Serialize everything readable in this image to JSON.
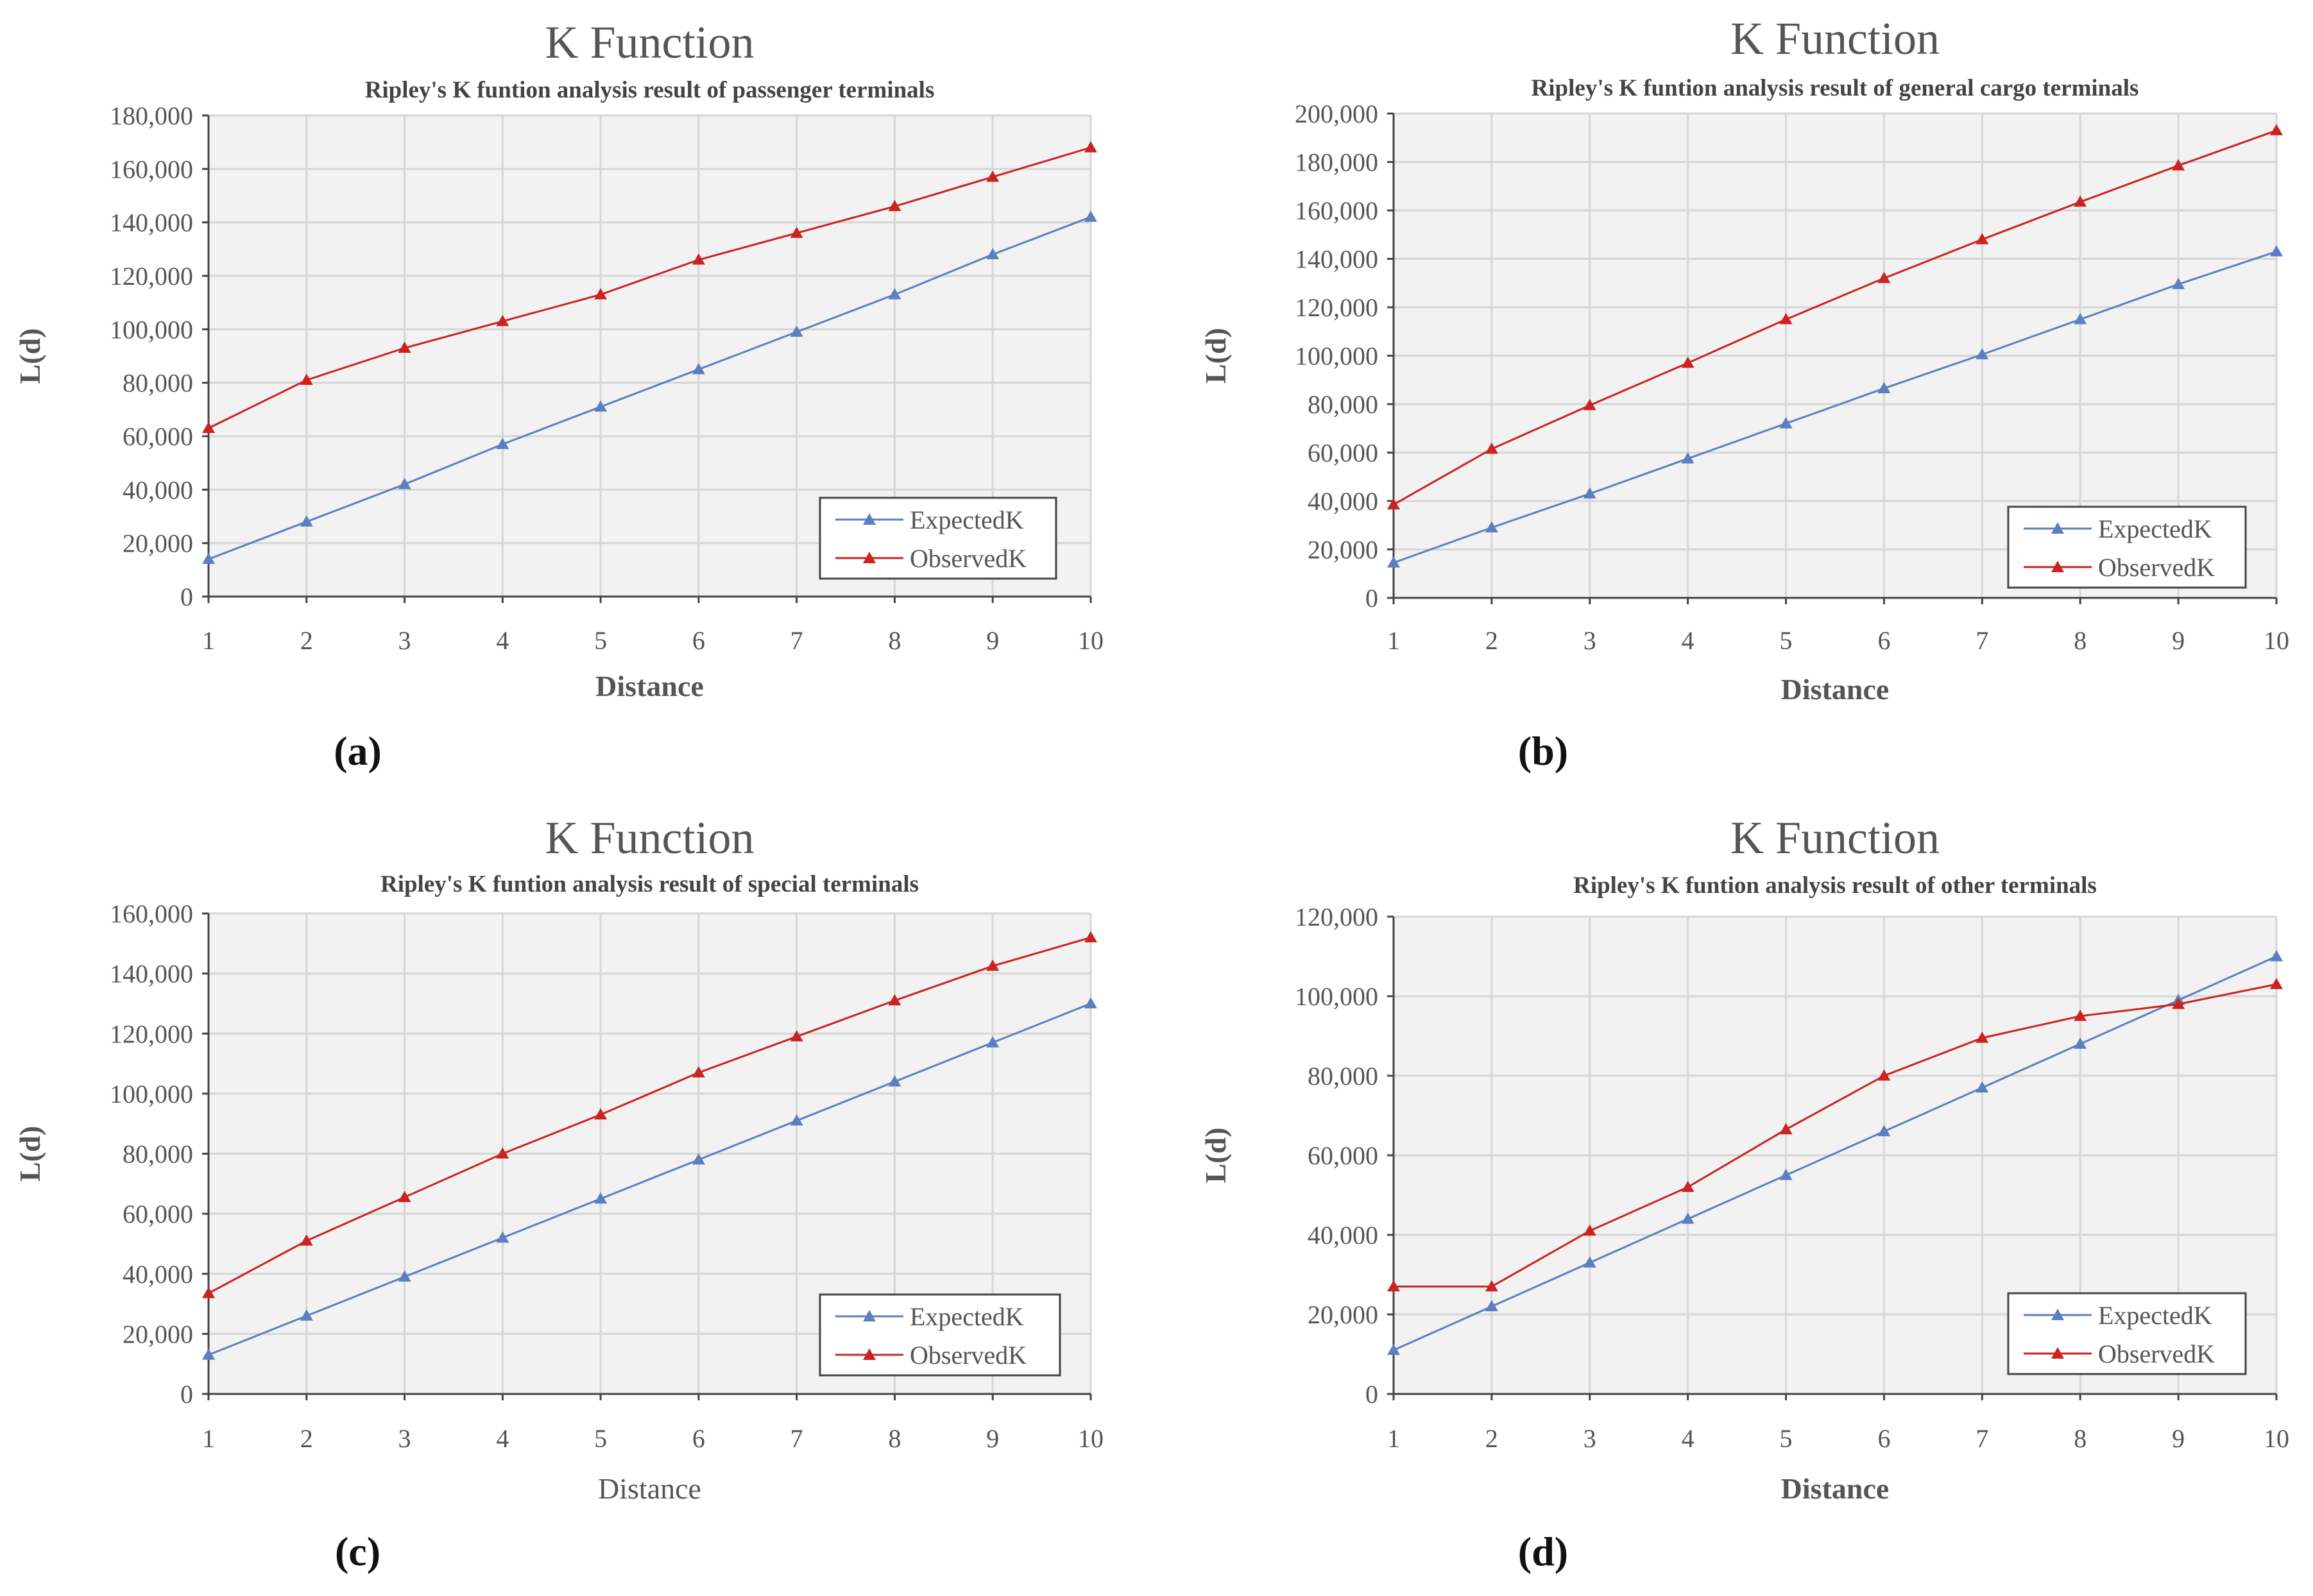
{
  "chart_data": [
    {
      "type": "line",
      "panel": "(a)",
      "title": "K Function",
      "subtitle": "Ripley's K funtion analysis result of passenger terminals",
      "xlabel": "Distance",
      "ylabel": "L(d)",
      "categories": [
        "1",
        "2",
        "3",
        "4",
        "5",
        "6",
        "7",
        "8",
        "9",
        "10"
      ],
      "ylim": [
        0,
        180000
      ],
      "yticks": [
        0,
        20000,
        40000,
        60000,
        80000,
        100000,
        120000,
        140000,
        160000,
        180000
      ],
      "ytick_labels": [
        "0",
        "20,000",
        "40,000",
        "60,000",
        "80,000",
        "100,000",
        "120,000",
        "140,000",
        "160,000",
        "180,000"
      ],
      "grid": true,
      "legend_position": "bottom-right",
      "series": [
        {
          "name": "ExpectedK",
          "color": "#5b7fc0",
          "values": [
            14000,
            28000,
            42000,
            57000,
            71000,
            85000,
            99000,
            113000,
            128000,
            142000
          ]
        },
        {
          "name": "ObservedK",
          "color": "#cc2222",
          "values": [
            63000,
            81000,
            93000,
            103000,
            113000,
            126000,
            136000,
            146000,
            157000,
            168000
          ]
        }
      ]
    },
    {
      "type": "line",
      "panel": "(b)",
      "title": "K Function",
      "subtitle": "Ripley's K funtion analysis result of general cargo terminals",
      "xlabel": "Distance",
      "ylabel": "L(d)",
      "categories": [
        "1",
        "2",
        "3",
        "4",
        "5",
        "6",
        "7",
        "8",
        "9",
        "10"
      ],
      "ylim": [
        0,
        200000
      ],
      "yticks": [
        0,
        20000,
        40000,
        60000,
        80000,
        100000,
        120000,
        140000,
        160000,
        180000,
        200000
      ],
      "ytick_labels": [
        "0",
        "20,000",
        "40,000",
        "60,000",
        "80,000",
        "100,000",
        "120,000",
        "140,000",
        "160,000",
        "180,000",
        "200,000"
      ],
      "grid": true,
      "legend_position": "bottom-right",
      "series": [
        {
          "name": "ExpectedK",
          "color": "#5b7fc0",
          "values": [
            14500,
            29000,
            43000,
            57500,
            72000,
            86500,
            100500,
            115000,
            129500,
            143000
          ]
        },
        {
          "name": "ObservedK",
          "color": "#cc2222",
          "values": [
            38500,
            61500,
            79500,
            97000,
            115000,
            132000,
            148000,
            163500,
            178500,
            193000
          ]
        }
      ]
    },
    {
      "type": "line",
      "panel": "(c)",
      "title": "K Function",
      "subtitle": "Ripley's K funtion analysis result of special terminals",
      "xlabel": "Distance",
      "ylabel": "L(d)",
      "xlabel_bold": false,
      "categories": [
        "1",
        "2",
        "3",
        "4",
        "5",
        "6",
        "7",
        "8",
        "9",
        "10"
      ],
      "ylim": [
        0,
        160000
      ],
      "yticks": [
        0,
        20000,
        40000,
        60000,
        80000,
        100000,
        120000,
        140000,
        160000
      ],
      "ytick_labels": [
        "0",
        "20,000",
        "40,000",
        "60,000",
        "80,000",
        "100,000",
        "120,000",
        "140,000",
        "160,000"
      ],
      "grid": true,
      "legend_position": "bottom-right",
      "series": [
        {
          "name": "ExpectedK",
          "color": "#5b7fc0",
          "values": [
            13000,
            26000,
            39000,
            52000,
            65000,
            78000,
            91000,
            104000,
            117000,
            130000
          ]
        },
        {
          "name": "ObservedK",
          "color": "#cc2222",
          "values": [
            33500,
            51000,
            65500,
            80000,
            93000,
            107000,
            119000,
            131000,
            142500,
            152000
          ]
        }
      ]
    },
    {
      "type": "line",
      "panel": "(d)",
      "title": "K Function",
      "subtitle": "Ripley's K funtion analysis result of other terminals",
      "xlabel": "Distance",
      "ylabel": "L(d)",
      "categories": [
        "1",
        "2",
        "3",
        "4",
        "5",
        "6",
        "7",
        "8",
        "9",
        "10"
      ],
      "ylim": [
        0,
        120000
      ],
      "yticks": [
        0,
        20000,
        40000,
        60000,
        80000,
        100000,
        120000
      ],
      "ytick_labels": [
        "0",
        "20,000",
        "40,000",
        "60,000",
        "80,000",
        "100,000",
        "120,000"
      ],
      "grid": true,
      "legend_position": "bottom-right",
      "series": [
        {
          "name": "ExpectedK",
          "color": "#5b7fc0",
          "values": [
            11000,
            22000,
            33000,
            44000,
            55000,
            66000,
            77000,
            88000,
            99000,
            110000
          ]
        },
        {
          "name": "ObservedK",
          "color": "#cc2222",
          "values": [
            27000,
            27000,
            41000,
            52000,
            66500,
            80000,
            89500,
            95000,
            98000,
            103000
          ]
        }
      ]
    }
  ]
}
